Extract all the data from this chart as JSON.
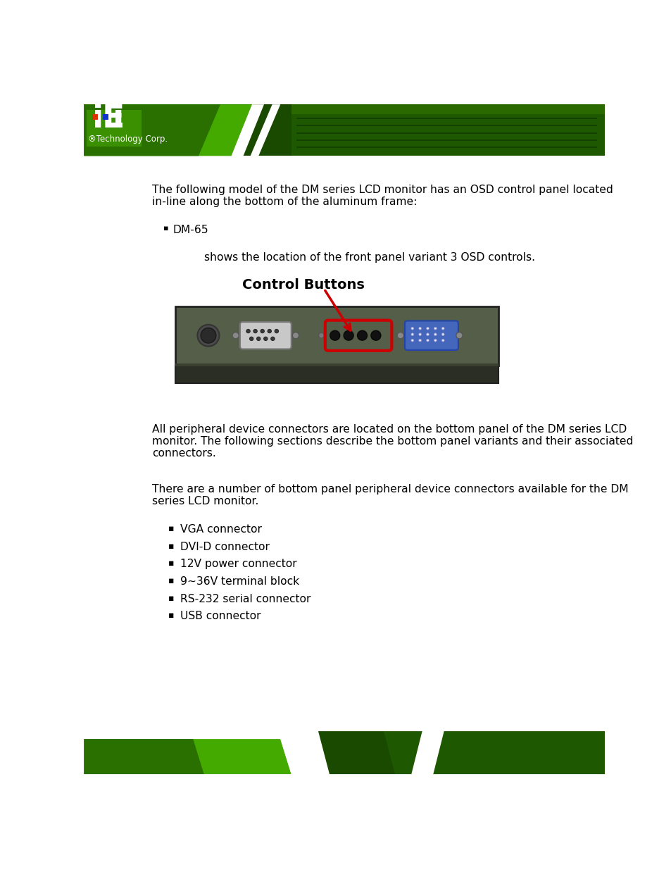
{
  "page_bg": "#ffffff",
  "logo_sub": "®Technology Corp.",
  "body_text_1a": "The following model of the DM series LCD monitor has an OSD control panel located",
  "body_text_1b": "in-line along the bottom of the aluminum frame:",
  "bullet_1": "DM-65",
  "sub_text_1": "shows the location of the front panel variant 3 OSD controls.",
  "diagram_label": "Control Buttons",
  "panel_color": "#555e48",
  "panel_mid": "#4a5240",
  "panel_dark": "#3a4030",
  "panel_border": "#222222",
  "panel_bottom_bar": "#2a2e24",
  "highlight_red": "#cc0000",
  "vga_blue": "#4466bb",
  "body_text_2a": "All peripheral device connectors are located on the bottom panel of the DM series LCD",
  "body_text_2b": "monitor. The following sections describe the bottom panel variants and their associated",
  "body_text_2c": "connectors.",
  "body_text_3a": "There are a number of bottom panel peripheral device connectors available for the DM",
  "body_text_3b": "series LCD monitor.",
  "bullets_2": [
    "VGA connector",
    "DVI-D connector",
    "12V power connector",
    "9~36V terminal block",
    "RS-232 serial connector",
    "USB connector"
  ],
  "text_color": "#000000",
  "text_font_size": 11.2,
  "bullet_font_size": 11.2,
  "diagram_label_size": 14,
  "header_green_dark": "#1a4a00",
  "header_green_mid": "#2a7000",
  "header_green_bright": "#44aa00",
  "footer_green_dark": "#1a4a00",
  "footer_green_mid": "#2a7000",
  "footer_green_bright": "#44aa00"
}
